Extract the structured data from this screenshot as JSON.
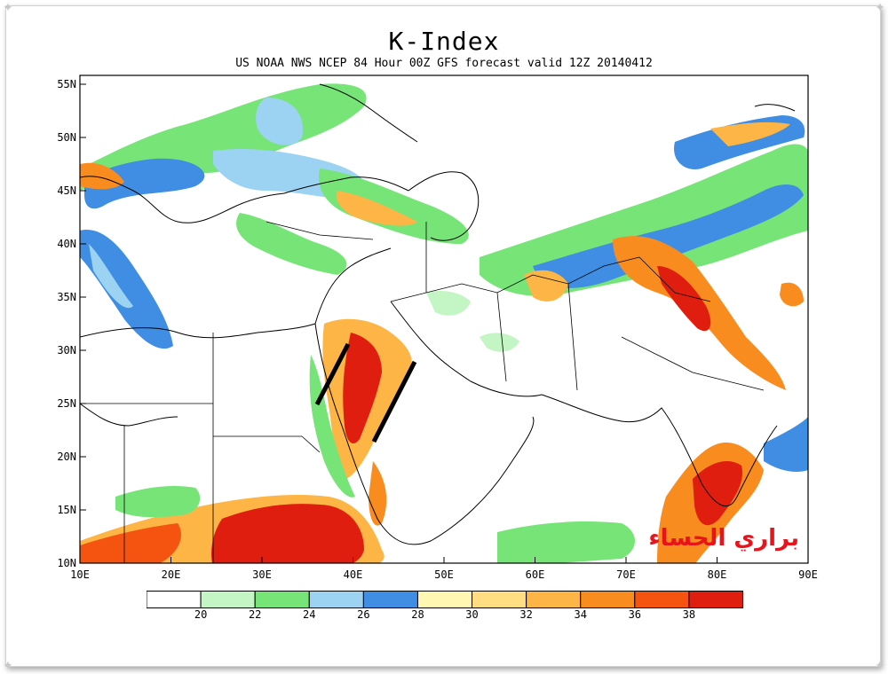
{
  "title": "K-Index",
  "subtitle": "US NOAA NWS NCEP 84 Hour 00Z GFS forecast valid 12Z 20140412",
  "lat_labels": [
    "55N",
    "50N",
    "45N",
    "40N",
    "35N",
    "30N",
    "25N",
    "20N",
    "15N",
    "10N"
  ],
  "lon_labels": [
    "10E",
    "20E",
    "30E",
    "40E",
    "50E",
    "60E",
    "70E",
    "80E",
    "90E"
  ],
  "legend": {
    "labels": [
      "20",
      "22",
      "24",
      "26",
      "28",
      "30",
      "32",
      "34",
      "36",
      "38"
    ],
    "colors": [
      "#ffffff",
      "#c4f5c4",
      "#77e477",
      "#9cd2f2",
      "#3f8ee3",
      "#fff7b2",
      "#ffdd82",
      "#fdb546",
      "#f98c1f",
      "#f4540f",
      "#e01e10"
    ]
  },
  "watermark": "براري الحساء"
}
